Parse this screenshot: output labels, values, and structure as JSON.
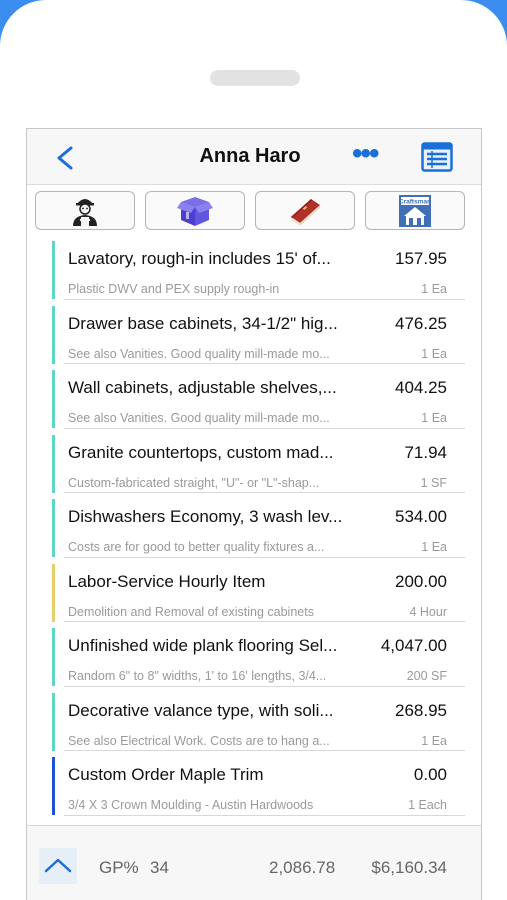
{
  "header": {
    "title": "Anna Haro",
    "more_label": "•••"
  },
  "toolbar": {
    "buttons": [
      {
        "icon": "labor-worker-icon"
      },
      {
        "icon": "package-box-icon"
      },
      {
        "icon": "book-icon"
      },
      {
        "icon": "craftsman-logo-icon",
        "logo_text": "Craftsman"
      }
    ]
  },
  "colors": {
    "accent": "#1a6fd8",
    "teal": "#5ed6c0",
    "yellow": "#e6cf6a",
    "blue": "#1e4fd8"
  },
  "items": [
    {
      "title": "Lavatory, rough-in includes 15' of...",
      "price": "157.95",
      "desc": "Plastic DWV and PEX supply rough-in",
      "unit": "1 Ea",
      "color": "#5ed6c0"
    },
    {
      "title": "Drawer base cabinets, 34-1/2\" hig...",
      "price": "476.25",
      "desc": "See also Vanities. Good quality mill-made mo...",
      "unit": "1 Ea",
      "color": "#5ed6c0"
    },
    {
      "title": "Wall cabinets, adjustable shelves,...",
      "price": "404.25",
      "desc": "See also Vanities. Good quality mill-made mo...",
      "unit": "1 Ea",
      "color": "#5ed6c0"
    },
    {
      "title": "Granite countertops, custom mad...",
      "price": "71.94",
      "desc": "Custom-fabricated straight, \"U\"- or \"L\"-shap...",
      "unit": "1 SF",
      "color": "#5ed6c0"
    },
    {
      "title": "Dishwashers Economy, 3 wash lev...",
      "price": "534.00",
      "desc": "Costs are for good to better quality fixtures a...",
      "unit": "1 Ea",
      "color": "#5ed6c0"
    },
    {
      "title": "Labor-Service  Hourly Item",
      "price": "200.00",
      "desc": "Demolition and Removal of existing cabinets",
      "unit": "4 Hour",
      "color": "#e6cf6a"
    },
    {
      "title": "Unfinished wide plank flooring Sel...",
      "price": "4,047.00",
      "desc": "Random 6\" to 8\" widths, 1' to 16' lengths, 3/4...",
      "unit": "200 SF",
      "color": "#5ed6c0"
    },
    {
      "title": "Decorative valance type, with soli...",
      "price": "268.95",
      "desc": "See also Electrical Work. Costs are to hang a...",
      "unit": "1 Ea",
      "color": "#5ed6c0"
    },
    {
      "title": "Custom Order Maple Trim",
      "price": "0.00",
      "desc": "3/4 X 3 Crown Moulding - Austin Hardwoods",
      "unit": "1 Each",
      "color": "#1e4fd8"
    }
  ],
  "footer": {
    "gp_label": "GP%",
    "gp_value": "34",
    "cost_total": "2,086.78",
    "grand_total": "$6,160.34"
  }
}
